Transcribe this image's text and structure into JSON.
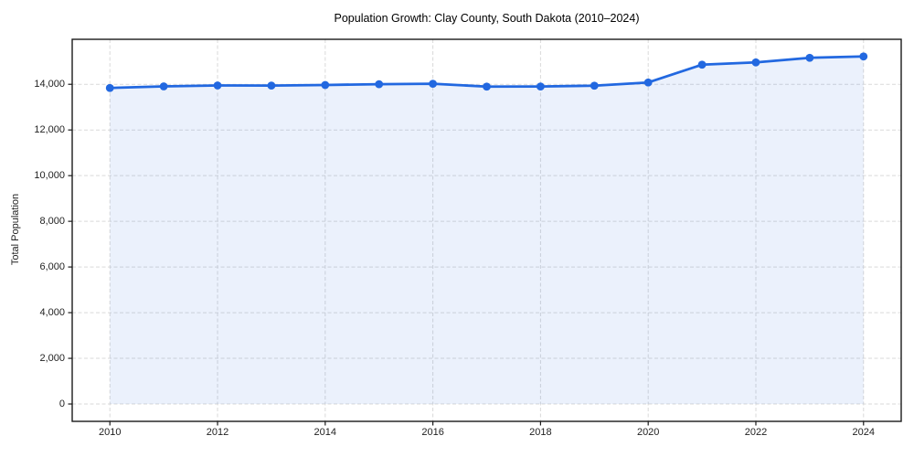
{
  "figure": {
    "title": "Population Growth: Clay County, South Dakota (2010–2024)",
    "y_axis_label": "Total Population"
  },
  "colors": {
    "line": "#2268e0",
    "marker": "#2268e0",
    "area_fill_rgba": "rgba(61,118,230,0.10)",
    "grid": "#d9d9d9",
    "spine": "#1a1a1a",
    "tick_label": "#1f1f1f",
    "title_text": "#000000",
    "background": "#ffffff"
  },
  "chart_data": {
    "type": "line",
    "title": "Population Growth: Clay County, South Dakota (2010–2024)",
    "xlabel": "",
    "ylabel": "Total Population",
    "x": [
      2010,
      2011,
      2012,
      2013,
      2014,
      2015,
      2016,
      2017,
      2018,
      2019,
      2020,
      2021,
      2022,
      2023,
      2024
    ],
    "series": [
      {
        "name": "Total Population",
        "values": [
          13840,
          13910,
          13950,
          13945,
          13970,
          14005,
          14025,
          13900,
          13905,
          13940,
          14080,
          14860,
          14960,
          15160,
          15220
        ]
      }
    ],
    "xlim": [
      2009.3,
      2024.7
    ],
    "ylim": [
      -760,
      15970
    ],
    "xticks": [
      2010,
      2012,
      2014,
      2016,
      2018,
      2020,
      2022,
      2024
    ],
    "xtick_labels": [
      "2010",
      "2012",
      "2014",
      "2016",
      "2018",
      "2020",
      "2022",
      "2024"
    ],
    "yticks": [
      0,
      2000,
      4000,
      6000,
      8000,
      10000,
      12000,
      14000
    ],
    "ytick_labels": [
      "0",
      "2,000",
      "4,000",
      "6,000",
      "8,000",
      "10,000",
      "12,000",
      "14,000"
    ],
    "grid": true,
    "grid_style": "dashed",
    "legend": false,
    "marker": "circle",
    "marker_radius": 4.4,
    "line_width": 2.8,
    "area_fill": true,
    "area_baseline": 0
  }
}
